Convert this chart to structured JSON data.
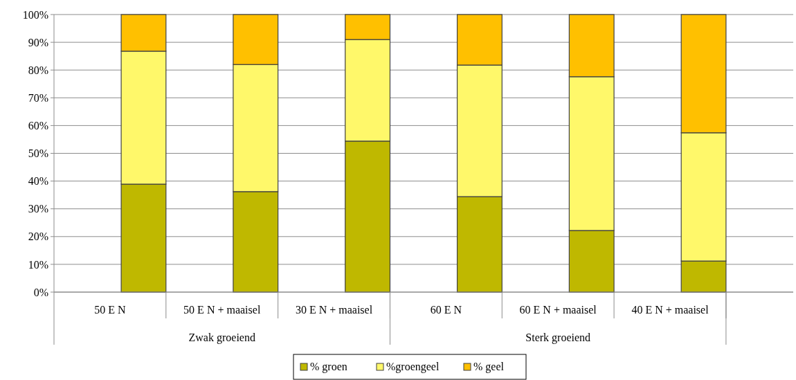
{
  "chart_data": {
    "type": "bar",
    "stacked": true,
    "categories": [
      "50 E N",
      "50 E N + maaisel",
      "30 E N + maaisel",
      "60 E N",
      "60 E N + maaisel",
      "40 E N + maaisel"
    ],
    "series": [
      {
        "name": "% groen",
        "color": "#bfb800",
        "values": [
          38.9,
          36.2,
          54.4,
          34.4,
          22.2,
          11.2
        ]
      },
      {
        "name": "%groengeel",
        "color": "#fff86a",
        "values": [
          47.9,
          45.8,
          36.6,
          47.4,
          55.4,
          46.2
        ]
      },
      {
        "name": "% geel",
        "color": "#ffc000",
        "values": [
          13.2,
          18.0,
          9.0,
          18.2,
          22.4,
          42.6
        ]
      }
    ],
    "annotations": [
      "Zwak groeiend",
      "Sterk groeiend"
    ],
    "ylim": [
      0,
      100
    ],
    "yticks": [
      {
        "value": 0,
        "label": "0%"
      },
      {
        "value": 10,
        "label": "10%"
      },
      {
        "value": 20,
        "label": "20%"
      },
      {
        "value": 30,
        "label": "30%"
      },
      {
        "value": 40,
        "label": "40%"
      },
      {
        "value": 50,
        "label": "50%"
      },
      {
        "value": 60,
        "label": "60%"
      },
      {
        "value": 70,
        "label": "70%"
      },
      {
        "value": 80,
        "label": "80%"
      },
      {
        "value": 90,
        "label": "90%"
      },
      {
        "value": 100,
        "label": "100%"
      }
    ],
    "grid": "y",
    "legend": "bottom"
  }
}
